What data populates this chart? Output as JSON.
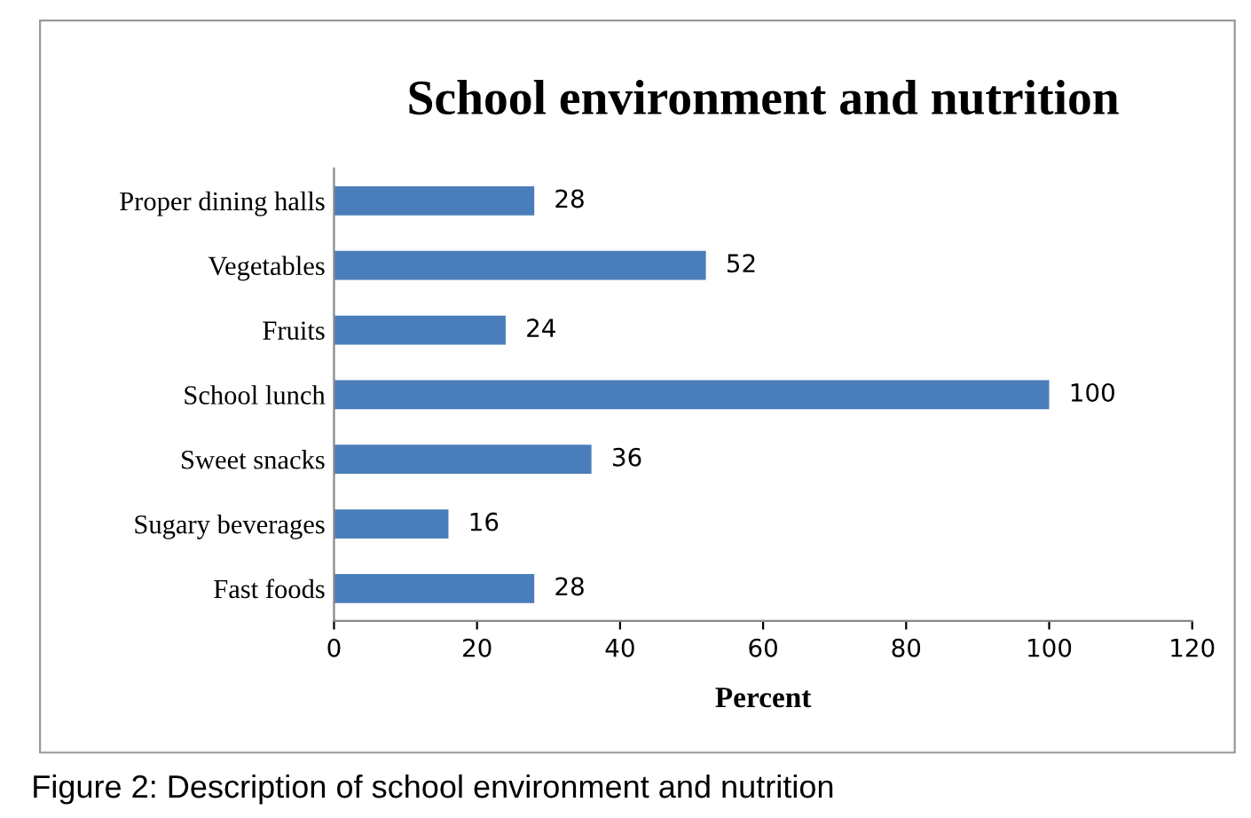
{
  "chart_data": {
    "type": "bar",
    "orientation": "horizontal",
    "title": "School environment and nutrition",
    "xlabel": "Percent",
    "categories": [
      "Proper dining halls",
      "Vegetables",
      "Fruits",
      "School lunch",
      "Sweet snacks",
      "Sugary beverages",
      "Fast foods"
    ],
    "values": [
      28,
      52,
      24,
      100,
      36,
      16,
      28
    ],
    "color": "#4a7ebb",
    "xlim": [
      0,
      120
    ],
    "xticks": [
      0,
      20,
      40,
      60,
      80,
      100,
      120
    ],
    "grid": false,
    "legend": false,
    "data_labels": true,
    "annotations": [
      "Figure 2: Description of school environment and nutrition"
    ]
  }
}
